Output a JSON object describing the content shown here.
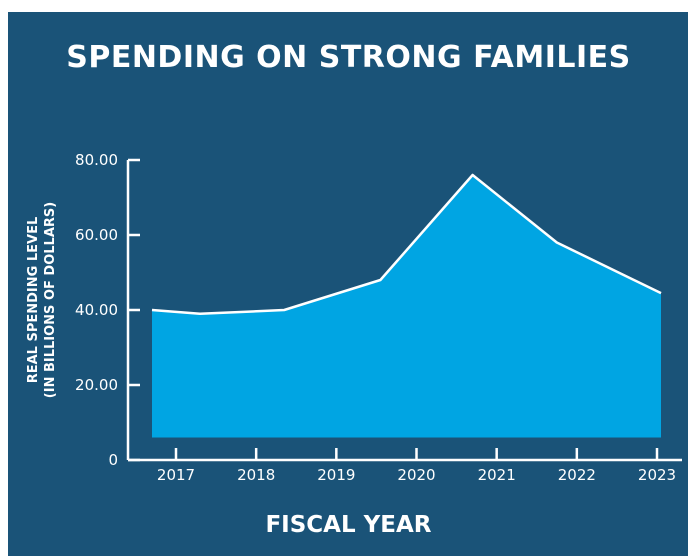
{
  "chart_data": {
    "type": "area",
    "title": "SPENDING ON STRONG FAMILIES",
    "xlabel": "FISCAL YEAR",
    "ylabel": [
      "REAL SPENDING LEVEL",
      "(IN BILLIONS OF DOLLARS)"
    ],
    "x": [
      2016.7,
      2017.3,
      2018.35,
      2019.55,
      2020.7,
      2021.75,
      2023.05
    ],
    "values": [
      40,
      39,
      40,
      48,
      76,
      58,
      44.5
    ],
    "area_base": 6,
    "xticks": [
      2017,
      2018,
      2019,
      2020,
      2021,
      2022,
      2023
    ],
    "xticklabels": [
      "2017",
      "2018",
      "2019",
      "2020",
      "2021",
      "2022",
      "2023"
    ],
    "yticks": [
      0,
      20,
      40,
      60,
      80
    ],
    "yticklabels": [
      "0",
      "20.00",
      "40.00",
      "60.00",
      "80.00"
    ],
    "ylim": [
      0,
      80
    ],
    "grid": false,
    "legend": "none",
    "colors": {
      "background": "#1a5378",
      "fill": "#00a5e3",
      "line": "#ffffff",
      "text": "#ffffff",
      "axis": "#ffffff"
    }
  }
}
